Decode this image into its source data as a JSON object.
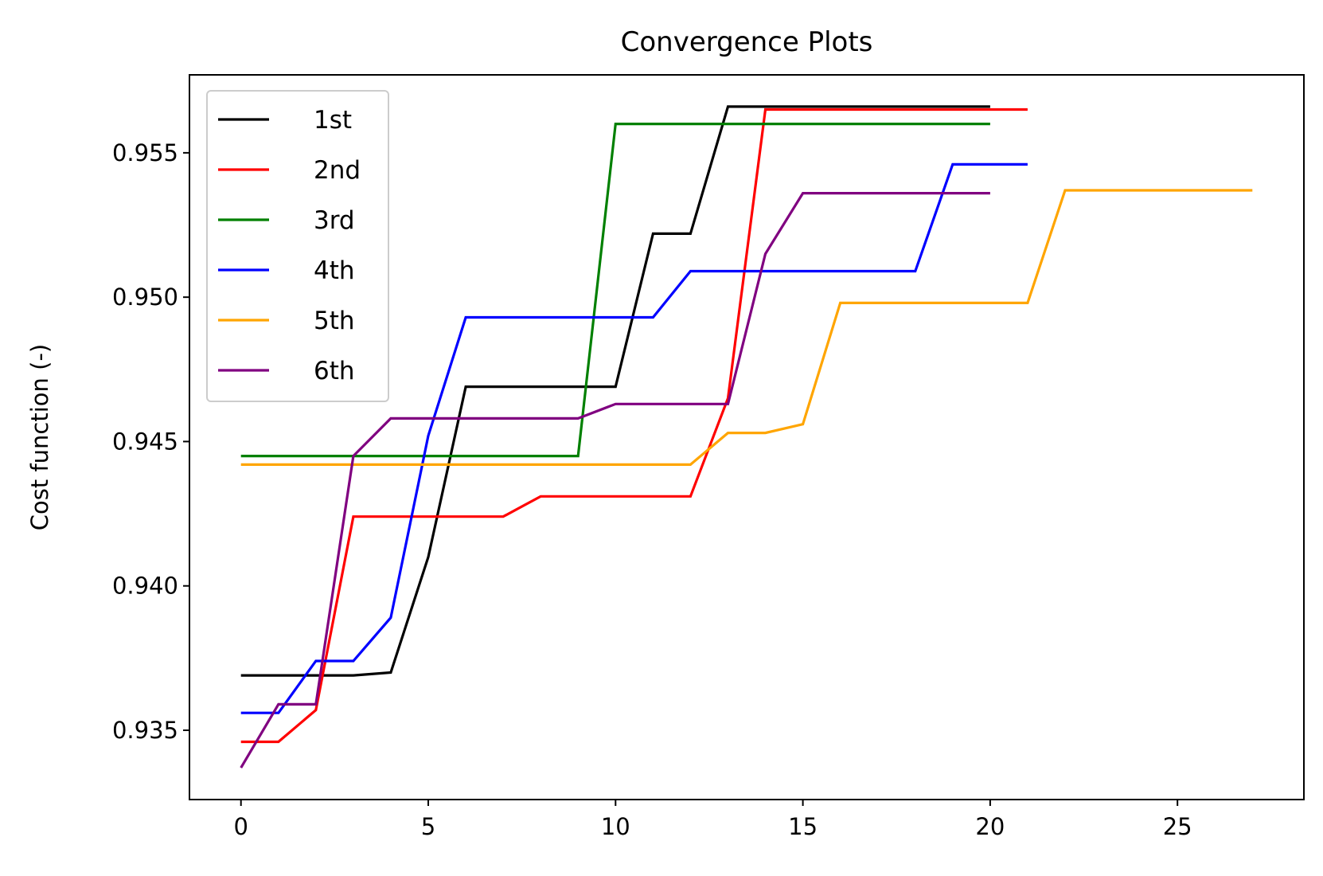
{
  "chart_data": {
    "type": "line",
    "title": "Convergence Plots",
    "xlabel": "",
    "ylabel": "Cost function (-)",
    "xlim": [
      -1.375,
      28.375
    ],
    "ylim": [
      0.9326,
      0.9577
    ],
    "xticks": [
      0,
      5,
      10,
      15,
      20,
      25
    ],
    "xtick_labels": [
      "0",
      "5",
      "10",
      "15",
      "20",
      "25"
    ],
    "yticks": [
      0.935,
      0.94,
      0.945,
      0.95,
      0.955
    ],
    "ytick_labels": [
      "0.935",
      "0.940",
      "0.945",
      "0.950",
      "0.955"
    ],
    "grid": false,
    "legend_position": "top-left",
    "series": [
      {
        "name": "1st",
        "color": "#000000",
        "x": [
          0,
          1,
          2,
          3,
          4,
          5,
          6,
          7,
          8,
          9,
          10,
          11,
          12,
          13,
          14,
          15,
          16,
          17,
          18,
          19,
          20
        ],
        "y": [
          0.9369,
          0.9369,
          0.9369,
          0.9369,
          0.937,
          0.941,
          0.9469,
          0.9469,
          0.9469,
          0.9469,
          0.9469,
          0.9522,
          0.9522,
          0.9566,
          0.9566,
          0.9566,
          0.9566,
          0.9566,
          0.9566,
          0.9566,
          0.9566
        ]
      },
      {
        "name": "2nd",
        "color": "#ff0000",
        "x": [
          0,
          1,
          2,
          3,
          4,
          5,
          6,
          7,
          8,
          9,
          10,
          11,
          12,
          13,
          14,
          15,
          16,
          17,
          18,
          19,
          20,
          21
        ],
        "y": [
          0.9346,
          0.9346,
          0.9357,
          0.9424,
          0.9424,
          0.9424,
          0.9424,
          0.9424,
          0.9431,
          0.9431,
          0.9431,
          0.9431,
          0.9431,
          0.9465,
          0.9565,
          0.9565,
          0.9565,
          0.9565,
          0.9565,
          0.9565,
          0.9565,
          0.9565
        ]
      },
      {
        "name": "3rd",
        "color": "#008000",
        "x": [
          0,
          1,
          2,
          3,
          4,
          5,
          6,
          7,
          8,
          9,
          10,
          11,
          12,
          13,
          14,
          15,
          16,
          17,
          18,
          19,
          20
        ],
        "y": [
          0.9445,
          0.9445,
          0.9445,
          0.9445,
          0.9445,
          0.9445,
          0.9445,
          0.9445,
          0.9445,
          0.9445,
          0.956,
          0.956,
          0.956,
          0.956,
          0.956,
          0.956,
          0.956,
          0.956,
          0.956,
          0.956,
          0.956
        ]
      },
      {
        "name": "4th",
        "color": "#0000ff",
        "x": [
          0,
          1,
          2,
          3,
          4,
          5,
          6,
          7,
          8,
          9,
          10,
          11,
          12,
          13,
          14,
          15,
          16,
          17,
          18,
          19,
          20,
          21
        ],
        "y": [
          0.9356,
          0.9356,
          0.9374,
          0.9374,
          0.9389,
          0.9452,
          0.9493,
          0.9493,
          0.9493,
          0.9493,
          0.9493,
          0.9493,
          0.9509,
          0.9509,
          0.9509,
          0.9509,
          0.9509,
          0.9509,
          0.9509,
          0.9546,
          0.9546,
          0.9546
        ]
      },
      {
        "name": "5th",
        "color": "#ffa500",
        "x": [
          0,
          1,
          2,
          3,
          4,
          5,
          6,
          7,
          8,
          9,
          10,
          11,
          12,
          13,
          14,
          15,
          16,
          17,
          18,
          19,
          20,
          21,
          22,
          23,
          24,
          25,
          26,
          27
        ],
        "y": [
          0.9442,
          0.9442,
          0.9442,
          0.9442,
          0.9442,
          0.9442,
          0.9442,
          0.9442,
          0.9442,
          0.9442,
          0.9442,
          0.9442,
          0.9442,
          0.9453,
          0.9453,
          0.9456,
          0.9498,
          0.9498,
          0.9498,
          0.9498,
          0.9498,
          0.9498,
          0.9537,
          0.9537,
          0.9537,
          0.9537,
          0.9537,
          0.9537
        ]
      },
      {
        "name": "6th",
        "color": "#800080",
        "x": [
          0,
          1,
          2,
          3,
          4,
          5,
          6,
          7,
          8,
          9,
          10,
          11,
          12,
          13,
          14,
          15,
          16,
          17,
          18,
          19,
          20
        ],
        "y": [
          0.9337,
          0.9359,
          0.9359,
          0.9445,
          0.9458,
          0.9458,
          0.9458,
          0.9458,
          0.9458,
          0.9458,
          0.9463,
          0.9463,
          0.9463,
          0.9463,
          0.9515,
          0.9536,
          0.9536,
          0.9536,
          0.9536,
          0.9536,
          0.9536
        ]
      }
    ]
  }
}
